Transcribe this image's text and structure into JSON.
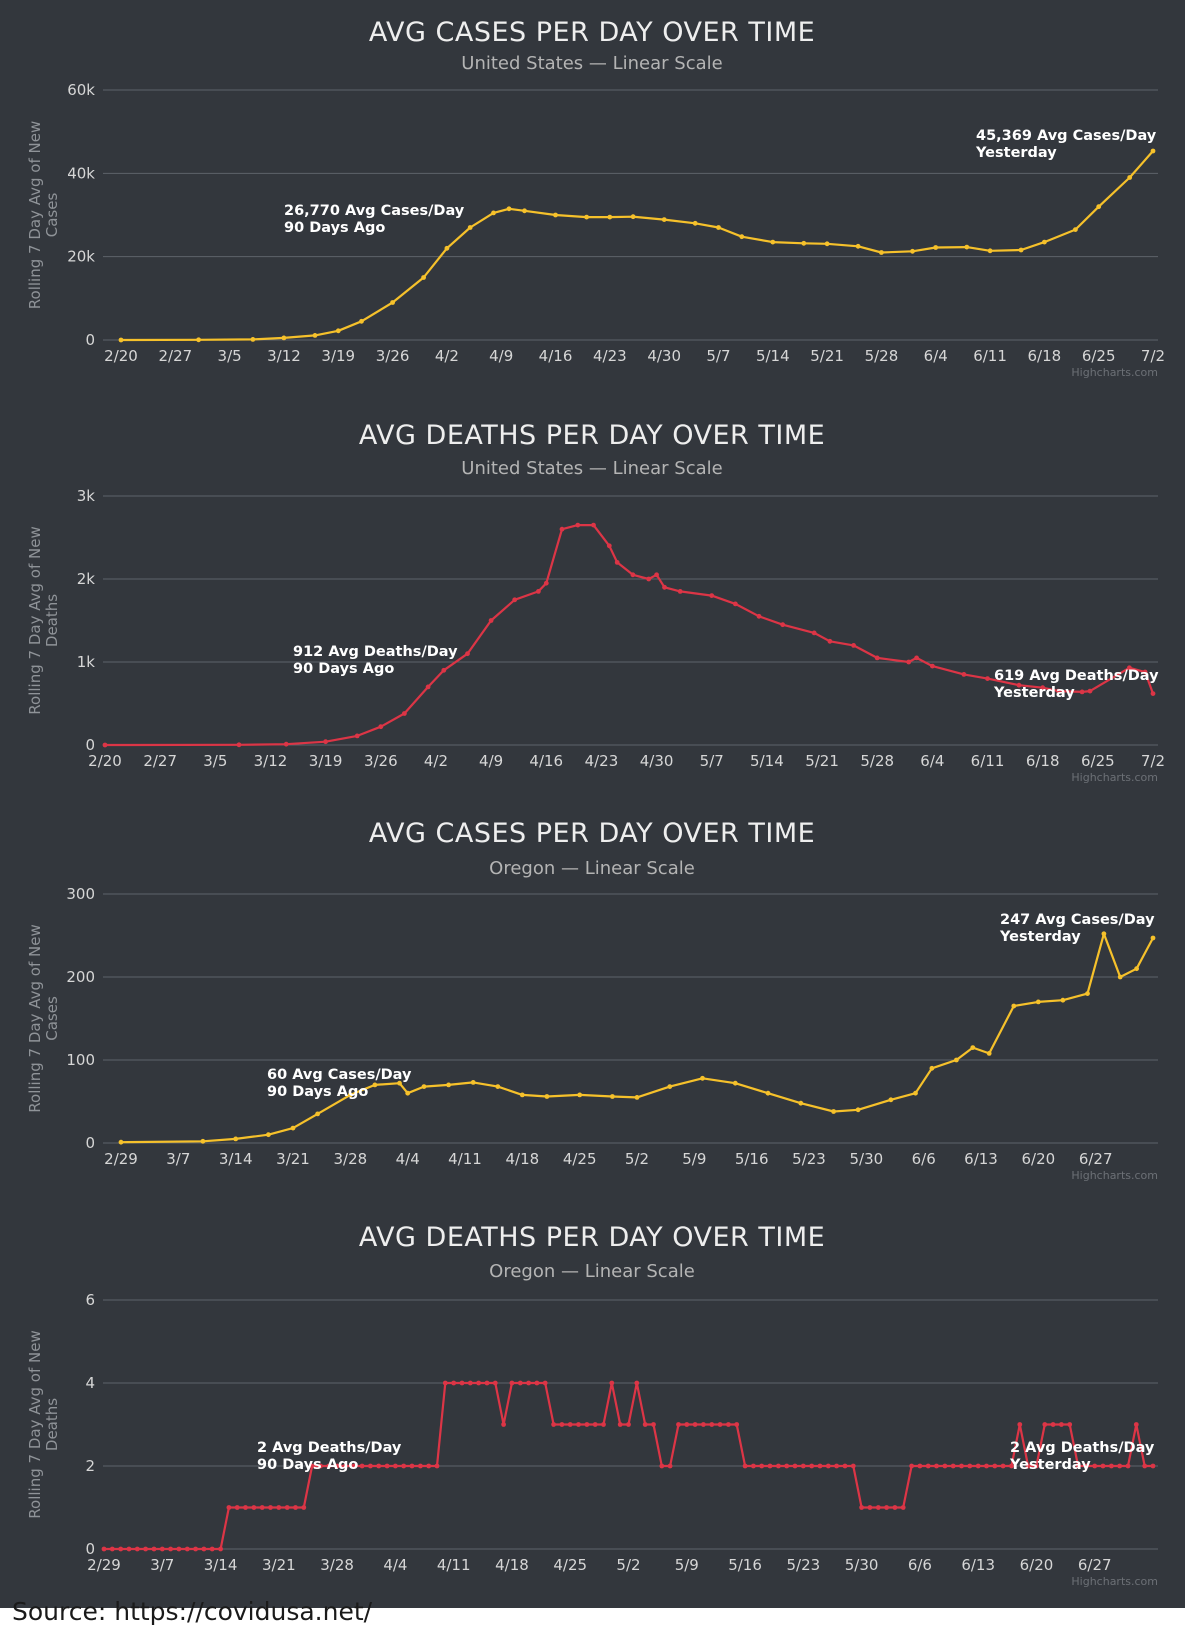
{
  "source": "Source: https://covidusa.net/",
  "credit": "Highcharts.com",
  "colors": {
    "cases": "#f6c12b",
    "deaths": "#dc3546"
  },
  "chart_data": [
    {
      "type": "line",
      "title": "AVG CASES PER DAY OVER TIME",
      "subtitle": "United States — Linear Scale",
      "ylabel": "Rolling 7 Day Avg of New Cases",
      "ylim": [
        0,
        60000
      ],
      "yticks": [
        0,
        20000,
        40000,
        60000
      ],
      "ytick_labels": [
        "0",
        "20k",
        "40k",
        "60k"
      ],
      "grid": true,
      "x_start": "2020-02-20",
      "xlim": [
        "2020-02-20",
        "2020-07-02"
      ],
      "xtick_labels": [
        "2/20",
        "2/27",
        "3/5",
        "3/12",
        "3/19",
        "3/26",
        "4/2",
        "4/9",
        "4/16",
        "4/23",
        "4/30",
        "5/7",
        "5/14",
        "5/21",
        "5/28",
        "6/4",
        "6/11",
        "6/18",
        "6/25",
        "7/2"
      ],
      "series": [
        {
          "color": "#f6c12b",
          "dates": [
            "2020-02-20",
            "2020-03-01",
            "2020-03-08",
            "2020-03-12",
            "2020-03-16",
            "2020-03-19",
            "2020-03-22",
            "2020-03-26",
            "2020-03-30",
            "2020-04-02",
            "2020-04-05",
            "2020-04-08",
            "2020-04-10",
            "2020-04-12",
            "2020-04-16",
            "2020-04-20",
            "2020-04-23",
            "2020-04-26",
            "2020-04-30",
            "2020-05-04",
            "2020-05-07",
            "2020-05-10",
            "2020-05-14",
            "2020-05-18",
            "2020-05-21",
            "2020-05-25",
            "2020-05-28",
            "2020-06-01",
            "2020-06-04",
            "2020-06-08",
            "2020-06-11",
            "2020-06-15",
            "2020-06-18",
            "2020-06-22",
            "2020-06-25",
            "2020-06-29",
            "2020-07-02"
          ],
          "values": [
            0,
            40,
            150,
            500,
            1100,
            2200,
            4500,
            9000,
            15000,
            22000,
            27000,
            30500,
            31500,
            31000,
            30000,
            29500,
            29500,
            29600,
            28900,
            28000,
            27000,
            24800,
            23500,
            23200,
            23100,
            22500,
            21000,
            21300,
            22200,
            22300,
            21400,
            21600,
            23500,
            26500,
            32000,
            39000,
            45369
          ]
        }
      ],
      "annotations": [
        {
          "lines": [
            "26,770 Avg Cases/Day",
            "90 Days Ago"
          ]
        },
        {
          "lines": [
            "45,369 Avg Cases/Day",
            "Yesterday"
          ]
        }
      ]
    },
    {
      "type": "line",
      "title": "AVG DEATHS PER DAY OVER TIME",
      "subtitle": "United States — Linear Scale",
      "ylabel": "Rolling 7 Day Avg of New Deaths",
      "ylim": [
        0,
        3000
      ],
      "yticks": [
        0,
        1000,
        2000,
        3000
      ],
      "ytick_labels": [
        "0",
        "1k",
        "2k",
        "3k"
      ],
      "grid": true,
      "x_start": "2020-02-20",
      "xlim": [
        "2020-02-20",
        "2020-07-02"
      ],
      "xtick_labels": [
        "2/20",
        "2/27",
        "3/5",
        "3/12",
        "3/19",
        "3/26",
        "4/2",
        "4/9",
        "4/16",
        "4/23",
        "4/30",
        "5/7",
        "5/14",
        "5/21",
        "5/28",
        "6/4",
        "6/11",
        "6/18",
        "6/25",
        "7/2"
      ],
      "series": [
        {
          "color": "#dc3546",
          "dates": [
            "2020-02-20",
            "2020-03-08",
            "2020-03-14",
            "2020-03-19",
            "2020-03-23",
            "2020-03-26",
            "2020-03-29",
            "2020-04-01",
            "2020-04-03",
            "2020-04-06",
            "2020-04-09",
            "2020-04-12",
            "2020-04-15",
            "2020-04-16",
            "2020-04-18",
            "2020-04-20",
            "2020-04-22",
            "2020-04-24",
            "2020-04-25",
            "2020-04-27",
            "2020-04-29",
            "2020-04-30",
            "2020-05-01",
            "2020-05-03",
            "2020-05-07",
            "2020-05-10",
            "2020-05-13",
            "2020-05-16",
            "2020-05-20",
            "2020-05-22",
            "2020-05-25",
            "2020-05-28",
            "2020-06-01",
            "2020-06-02",
            "2020-06-04",
            "2020-06-08",
            "2020-06-11",
            "2020-06-15",
            "2020-06-18",
            "2020-06-20",
            "2020-06-23",
            "2020-06-24",
            "2020-06-29",
            "2020-07-01",
            "2020-07-02"
          ],
          "values": [
            0,
            2,
            10,
            40,
            110,
            220,
            380,
            700,
            900,
            1100,
            1500,
            1750,
            1850,
            1950,
            2600,
            2650,
            2650,
            2400,
            2200,
            2050,
            2000,
            2050,
            1900,
            1850,
            1800,
            1700,
            1550,
            1450,
            1350,
            1250,
            1200,
            1050,
            1000,
            1050,
            950,
            850,
            800,
            720,
            690,
            650,
            640,
            650,
            930,
            880,
            619
          ]
        }
      ],
      "annotations": [
        {
          "lines": [
            "912 Avg Deaths/Day",
            "90 Days Ago"
          ]
        },
        {
          "lines": [
            "619 Avg Deaths/Day",
            "Yesterday"
          ]
        }
      ]
    },
    {
      "type": "line",
      "title": "AVG CASES PER DAY OVER TIME",
      "subtitle": "Oregon — Linear Scale",
      "ylabel": "Rolling 7 Day Avg of New Cases",
      "ylim": [
        0,
        300
      ],
      "yticks": [
        0,
        100,
        200,
        300
      ],
      "ytick_labels": [
        "0",
        "100",
        "200",
        "300"
      ],
      "grid": true,
      "x_start": "2020-02-29",
      "xlim": [
        "2020-02-29",
        "2020-07-04"
      ],
      "xtick_labels": [
        "2/29",
        "3/7",
        "3/14",
        "3/21",
        "3/28",
        "4/4",
        "4/11",
        "4/18",
        "4/25",
        "5/2",
        "5/9",
        "5/16",
        "5/23",
        "5/30",
        "6/6",
        "6/13",
        "6/20",
        "6/27"
      ],
      "series": [
        {
          "color": "#f6c12b",
          "dates": [
            "2020-02-29",
            "2020-03-10",
            "2020-03-14",
            "2020-03-18",
            "2020-03-21",
            "2020-03-24",
            "2020-03-28",
            "2020-03-31",
            "2020-04-03",
            "2020-04-04",
            "2020-04-06",
            "2020-04-09",
            "2020-04-12",
            "2020-04-15",
            "2020-04-18",
            "2020-04-21",
            "2020-04-25",
            "2020-04-29",
            "2020-05-02",
            "2020-05-06",
            "2020-05-10",
            "2020-05-14",
            "2020-05-18",
            "2020-05-22",
            "2020-05-26",
            "2020-05-29",
            "2020-06-02",
            "2020-06-05",
            "2020-06-07",
            "2020-06-10",
            "2020-06-12",
            "2020-06-14",
            "2020-06-17",
            "2020-06-20",
            "2020-06-23",
            "2020-06-26",
            "2020-06-28",
            "2020-06-30",
            "2020-07-02",
            "2020-07-04"
          ],
          "values": [
            1,
            2,
            5,
            10,
            18,
            35,
            58,
            70,
            72,
            60,
            68,
            70,
            73,
            68,
            58,
            56,
            58,
            56,
            55,
            68,
            78,
            72,
            60,
            48,
            38,
            40,
            52,
            60,
            90,
            100,
            115,
            108,
            165,
            170,
            172,
            180,
            252,
            200,
            210,
            247
          ]
        }
      ],
      "annotations": [
        {
          "lines": [
            "60 Avg Cases/Day",
            "90 Days Ago"
          ]
        },
        {
          "lines": [
            "247 Avg Cases/Day",
            "Yesterday"
          ]
        }
      ]
    },
    {
      "type": "line",
      "title": "AVG DEATHS PER DAY OVER TIME",
      "subtitle": "Oregon — Linear Scale",
      "ylabel": "Rolling 7 Day Avg of New Deaths",
      "ylim": [
        0,
        6
      ],
      "yticks": [
        0,
        2,
        4,
        6
      ],
      "ytick_labels": [
        "0",
        "2",
        "4",
        "6"
      ],
      "grid": true,
      "x_start": "2020-02-29",
      "xlim": [
        "2020-02-29",
        "2020-07-04"
      ],
      "xtick_labels": [
        "2/29",
        "3/7",
        "3/14",
        "3/21",
        "3/28",
        "4/4",
        "4/11",
        "4/18",
        "4/25",
        "5/2",
        "5/9",
        "5/16",
        "5/23",
        "5/30",
        "6/6",
        "6/13",
        "6/20",
        "6/27"
      ],
      "series": [
        {
          "color": "#dc3546",
          "dates": [
            "2020-02-29",
            "2020-03-01",
            "2020-03-02",
            "2020-03-03",
            "2020-03-04",
            "2020-03-05",
            "2020-03-06",
            "2020-03-07",
            "2020-03-08",
            "2020-03-09",
            "2020-03-10",
            "2020-03-11",
            "2020-03-12",
            "2020-03-13",
            "2020-03-14",
            "2020-03-15",
            "2020-03-16",
            "2020-03-17",
            "2020-03-18",
            "2020-03-19",
            "2020-03-20",
            "2020-03-21",
            "2020-03-22",
            "2020-03-23",
            "2020-03-24",
            "2020-03-25",
            "2020-03-26",
            "2020-03-27",
            "2020-03-28",
            "2020-03-29",
            "2020-03-30",
            "2020-03-31",
            "2020-04-01",
            "2020-04-02",
            "2020-04-03",
            "2020-04-04",
            "2020-04-05",
            "2020-04-06",
            "2020-04-07",
            "2020-04-08",
            "2020-04-09",
            "2020-04-10",
            "2020-04-11",
            "2020-04-12",
            "2020-04-13",
            "2020-04-14",
            "2020-04-15",
            "2020-04-16",
            "2020-04-17",
            "2020-04-18",
            "2020-04-19",
            "2020-04-20",
            "2020-04-21",
            "2020-04-22",
            "2020-04-23",
            "2020-04-24",
            "2020-04-25",
            "2020-04-26",
            "2020-04-27",
            "2020-04-28",
            "2020-04-29",
            "2020-04-30",
            "2020-05-01",
            "2020-05-02",
            "2020-05-03",
            "2020-05-04",
            "2020-05-05",
            "2020-05-06",
            "2020-05-07",
            "2020-05-08",
            "2020-05-09",
            "2020-05-10",
            "2020-05-11",
            "2020-05-12",
            "2020-05-13",
            "2020-05-14",
            "2020-05-15",
            "2020-05-16",
            "2020-05-17",
            "2020-05-18",
            "2020-05-19",
            "2020-05-20",
            "2020-05-21",
            "2020-05-22",
            "2020-05-23",
            "2020-05-24",
            "2020-05-25",
            "2020-05-26",
            "2020-05-27",
            "2020-05-28",
            "2020-05-29",
            "2020-05-30",
            "2020-05-31",
            "2020-06-01",
            "2020-06-02",
            "2020-06-03",
            "2020-06-04",
            "2020-06-05",
            "2020-06-06",
            "2020-06-07",
            "2020-06-08",
            "2020-06-09",
            "2020-06-10",
            "2020-06-11",
            "2020-06-12",
            "2020-06-13",
            "2020-06-14",
            "2020-06-15",
            "2020-06-16",
            "2020-06-17",
            "2020-06-18",
            "2020-06-19",
            "2020-06-20",
            "2020-06-21",
            "2020-06-22",
            "2020-06-23",
            "2020-06-24",
            "2020-06-25",
            "2020-06-26",
            "2020-06-27",
            "2020-06-28",
            "2020-06-29",
            "2020-06-30",
            "2020-07-01",
            "2020-07-02",
            "2020-07-03",
            "2020-07-04"
          ],
          "values": [
            0,
            0,
            0,
            0,
            0,
            0,
            0,
            0,
            0,
            0,
            0,
            0,
            0,
            0,
            0,
            1,
            1,
            1,
            1,
            1,
            1,
            1,
            1,
            1,
            1,
            2,
            2,
            2,
            2,
            2,
            2,
            2,
            2,
            2,
            2,
            2,
            2,
            2,
            2,
            2,
            2,
            4,
            4,
            4,
            4,
            4,
            4,
            4,
            3,
            4,
            4,
            4,
            4,
            4,
            3,
            3,
            3,
            3,
            3,
            3,
            3,
            4,
            3,
            3,
            4,
            3,
            3,
            2,
            2,
            3,
            3,
            3,
            3,
            3,
            3,
            3,
            3,
            2,
            2,
            2,
            2,
            2,
            2,
            2,
            2,
            2,
            2,
            2,
            2,
            2,
            2,
            1,
            1,
            1,
            1,
            1,
            1,
            2,
            2,
            2,
            2,
            2,
            2,
            2,
            2,
            2,
            2,
            2,
            2,
            2,
            3,
            2,
            2,
            3,
            3,
            3,
            3,
            2,
            2,
            2,
            2,
            2,
            2,
            2,
            3,
            2,
            2
          ]
        }
      ],
      "annotations": [
        {
          "lines": [
            "2 Avg Deaths/Day",
            "90 Days Ago"
          ]
        },
        {
          "lines": [
            "2 Avg Deaths/Day",
            "Yesterday"
          ]
        }
      ]
    }
  ]
}
